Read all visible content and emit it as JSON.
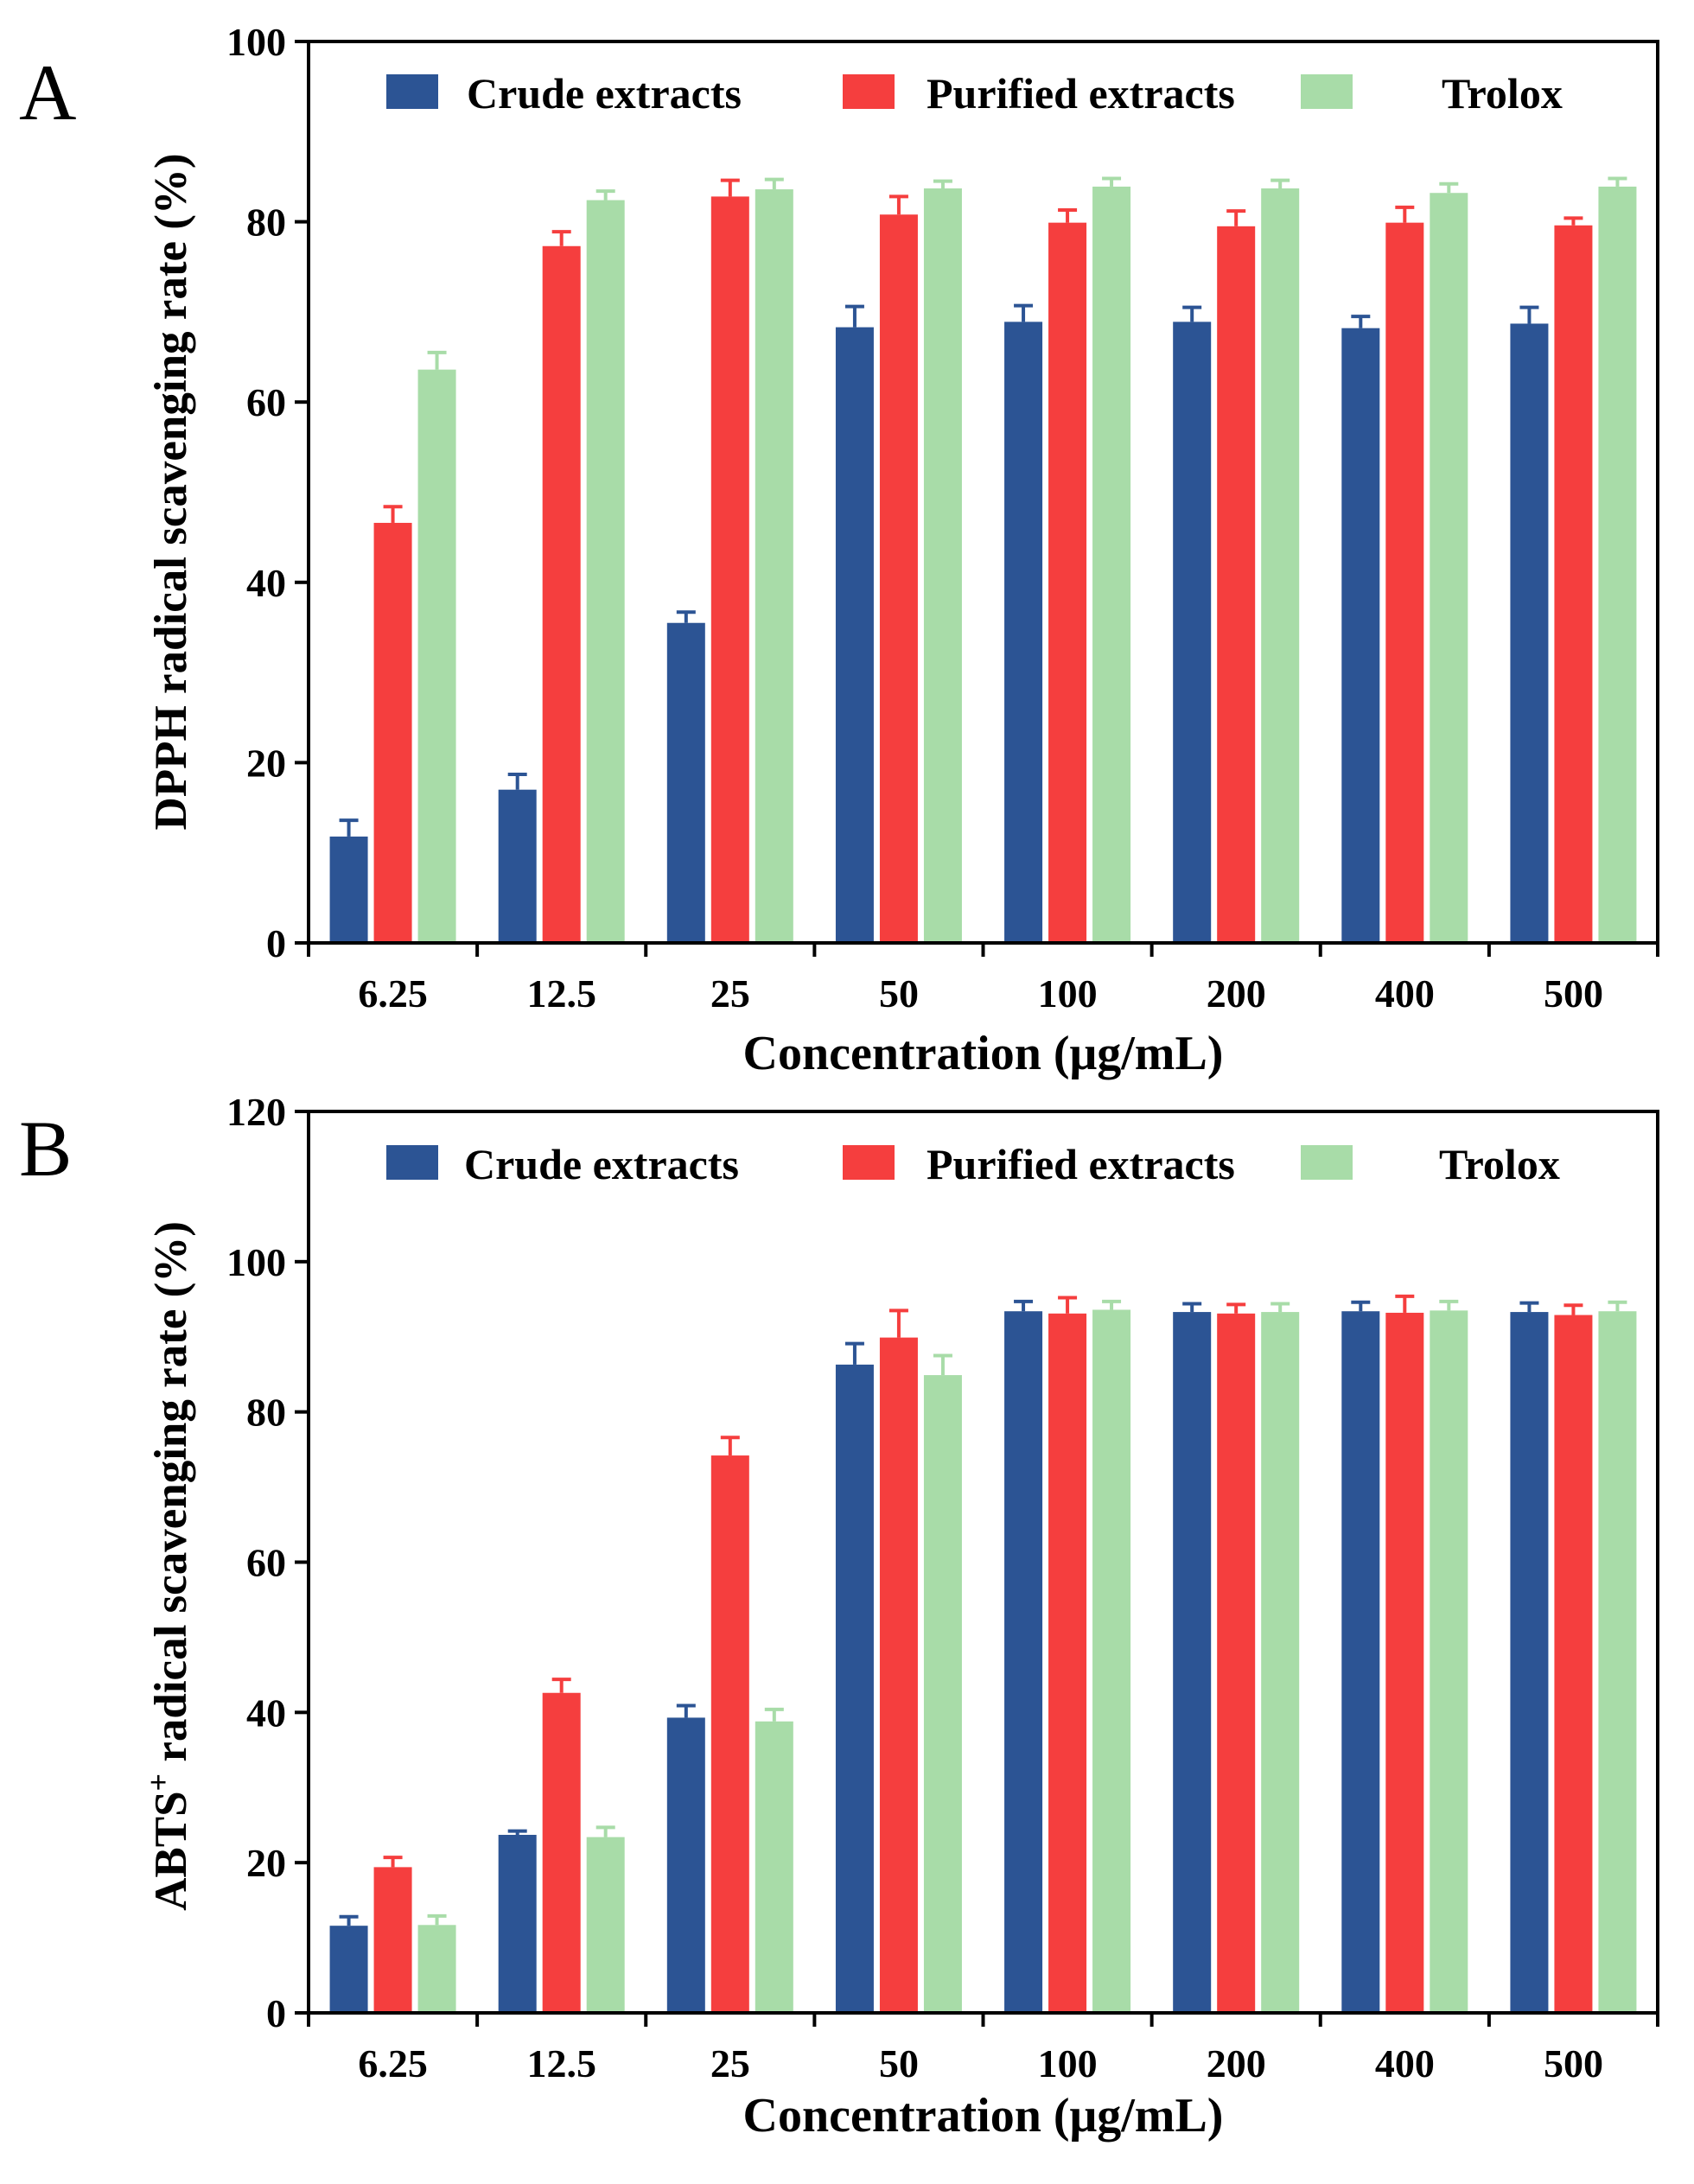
{
  "chart_data": [
    {
      "panel": "A",
      "type": "bar",
      "title": "",
      "xlabel": "Concentration (μg/mL)",
      "ylabel": "DPPH radical scavenging rate (%)",
      "ylim": [
        0,
        100
      ],
      "yticks": [
        0,
        20,
        40,
        60,
        80,
        100
      ],
      "categories": [
        "6.25",
        "12.5",
        "25",
        "50",
        "100",
        "200",
        "400",
        "500"
      ],
      "legend_position": "top",
      "series": [
        {
          "name": "Crude extracts",
          "color": "#2c5494",
          "values": [
            11.8,
            17.0,
            35.5,
            68.3,
            68.9,
            68.9,
            68.2,
            68.7
          ],
          "errors": [
            1.8,
            1.7,
            1.2,
            2.3,
            1.8,
            1.6,
            1.3,
            1.8
          ]
        },
        {
          "name": "Purified extracts",
          "color": "#f53e3e",
          "values": [
            46.6,
            77.3,
            82.8,
            80.8,
            79.9,
            79.5,
            79.9,
            79.6
          ],
          "errors": [
            1.8,
            1.6,
            1.8,
            2.0,
            1.4,
            1.7,
            1.7,
            0.8
          ]
        },
        {
          "name": "Trolox",
          "color": "#a8dca8",
          "values": [
            63.6,
            82.4,
            83.6,
            83.7,
            83.9,
            83.7,
            83.2,
            83.9
          ],
          "errors": [
            1.9,
            1.0,
            1.1,
            0.8,
            0.9,
            0.9,
            1.0,
            0.9
          ]
        }
      ]
    },
    {
      "panel": "B",
      "type": "bar",
      "title": "",
      "xlabel": "Concentration (μg/mL)",
      "ylabel_main": "ABTS",
      "ylabel_sup": "+",
      "ylabel_rest": " radical scavenging rate (%)",
      "ylim": [
        0,
        120
      ],
      "yticks": [
        0,
        20,
        40,
        60,
        80,
        100,
        120
      ],
      "categories": [
        "6.25",
        "12.5",
        "25",
        "50",
        "100",
        "200",
        "400",
        "500"
      ],
      "legend_position": "top",
      "series": [
        {
          "name": "Crude extracts",
          "color": "#2c5494",
          "values": [
            11.6,
            23.7,
            39.3,
            86.3,
            93.4,
            93.3,
            93.4,
            93.3
          ],
          "errors": [
            1.2,
            0.5,
            1.6,
            2.8,
            1.3,
            1.1,
            1.2,
            1.2
          ]
        },
        {
          "name": "Purified extracts",
          "color": "#f53e3e",
          "values": [
            19.4,
            42.6,
            74.2,
            89.9,
            93.1,
            93.1,
            93.2,
            92.9
          ],
          "errors": [
            1.3,
            1.8,
            2.4,
            3.6,
            2.1,
            1.2,
            2.2,
            1.3
          ]
        },
        {
          "name": "Trolox",
          "color": "#a8dca8",
          "values": [
            11.7,
            23.4,
            38.8,
            84.9,
            93.6,
            93.3,
            93.5,
            93.4
          ],
          "errors": [
            1.2,
            1.3,
            1.6,
            2.6,
            1.1,
            1.1,
            1.2,
            1.2
          ]
        }
      ]
    }
  ]
}
